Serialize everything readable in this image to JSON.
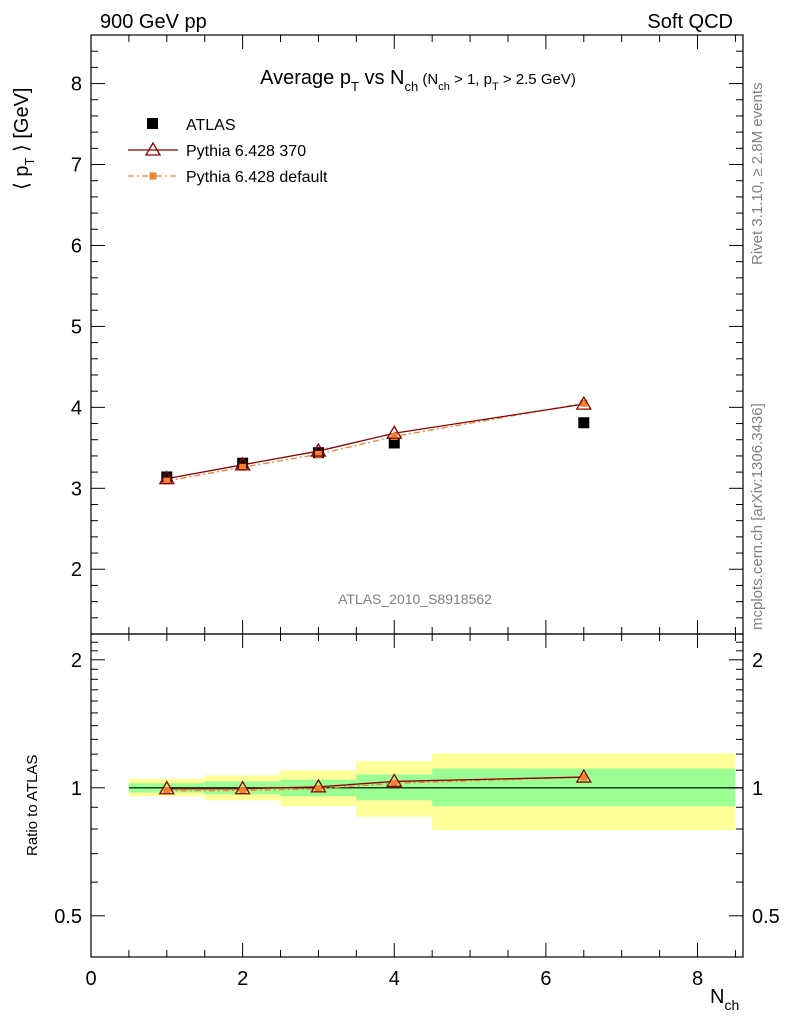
{
  "header": {
    "left": "900 GeV pp",
    "right": "Soft QCD"
  },
  "side_labels": {
    "rivet": "Rivet 3.1.10, ≥ 2.8M events",
    "mcplots": "mcplots.cern.ch [arXiv:1306.3436]"
  },
  "chart_data": [
    {
      "type": "scatter",
      "title": {
        "main": "Average p",
        "main_sub": "T",
        "vs": " vs N",
        "vs_sub": "ch",
        "cond_open": " (N",
        "cond_sub1": "ch",
        "cond_mid": " > 1, p",
        "cond_sub2": "T",
        "cond_close": " > 2.5 GeV)"
      },
      "ylabel": {
        "open": "⟨ p",
        "sub": "T",
        "close": " ⟩  [GeV]"
      },
      "watermark": "ATLAS_2010_S8918562",
      "xlim": [
        0,
        8.6
      ],
      "ylim": [
        1.2,
        8.6
      ],
      "x_ticks": [
        0,
        2,
        4,
        6,
        8
      ],
      "y_ticks": [
        2,
        3,
        4,
        5,
        6,
        7,
        8
      ],
      "legend_position": "top-left",
      "series": [
        {
          "name": "ATLAS",
          "marker": "square",
          "color": "#000000",
          "x": [
            1,
            2,
            3,
            4,
            6.5
          ],
          "y": [
            3.14,
            3.31,
            3.44,
            3.56,
            3.81
          ]
        },
        {
          "name": "Pythia 6.428 370",
          "marker": "triangle-open",
          "color": "#8b0000",
          "x": [
            1,
            2,
            3,
            4,
            6.5
          ],
          "y": [
            3.12,
            3.29,
            3.46,
            3.68,
            4.04
          ]
        },
        {
          "name": "Pythia 6.428 default",
          "marker": "square-small",
          "color": "#f28230",
          "x": [
            1,
            2,
            3,
            4,
            6.5
          ],
          "y": [
            3.09,
            3.26,
            3.42,
            3.64,
            4.05
          ]
        }
      ]
    },
    {
      "type": "scatter",
      "ylabel": "Ratio to ATLAS",
      "xlabel": {
        "main": "N",
        "sub": "ch"
      },
      "xlim": [
        0,
        8.6
      ],
      "ylim": [
        0.4,
        2.3
      ],
      "x_ticks": [
        0,
        2,
        4,
        6,
        8
      ],
      "y_ticks": [
        0.5,
        1,
        2
      ],
      "y_scale": "log",
      "bands": {
        "edges": [
          0.5,
          1.5,
          2.5,
          3.5,
          4.5,
          8.5
        ],
        "stat_low": [
          0.975,
          0.965,
          0.955,
          0.935,
          0.905
        ],
        "stat_high": [
          1.025,
          1.035,
          1.045,
          1.075,
          1.11
        ],
        "total_low": [
          0.955,
          0.935,
          0.905,
          0.855,
          0.795
        ],
        "total_high": [
          1.05,
          1.07,
          1.1,
          1.155,
          1.205
        ],
        "stat_color": "#9afe93",
        "total_color": "#ffff99"
      },
      "series": [
        {
          "name": "Pythia 6.428 370",
          "marker": "triangle-open",
          "color": "#8b0000",
          "x": [
            1,
            2,
            3,
            4,
            6.5
          ],
          "y": [
            0.995,
            0.995,
            1.005,
            1.035,
            1.06
          ]
        },
        {
          "name": "Pythia 6.428 default",
          "marker": "square-small",
          "color": "#f28230",
          "x": [
            1,
            2,
            3,
            4,
            6.5
          ],
          "y": [
            0.985,
            0.985,
            0.995,
            1.025,
            1.06
          ]
        }
      ]
    }
  ]
}
